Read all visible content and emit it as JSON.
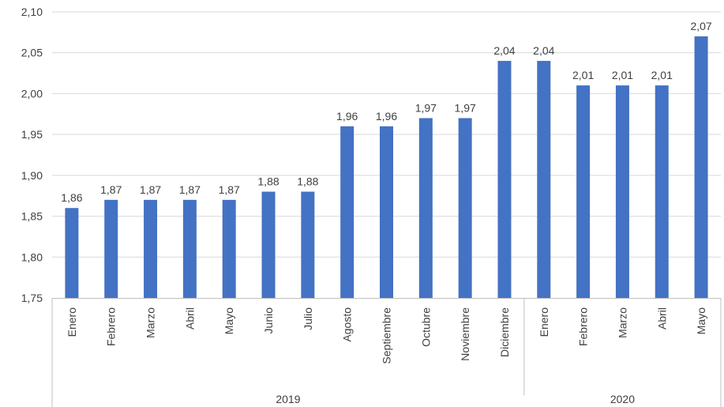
{
  "chart_data": {
    "type": "bar",
    "title": "",
    "xlabel": "",
    "ylabel": "",
    "ylim": [
      1.75,
      2.1
    ],
    "yticks": [
      "1,75",
      "1,80",
      "1,85",
      "1,90",
      "1,95",
      "2,00",
      "2,05",
      "2,10"
    ],
    "grid": true,
    "bar_color": "#4472C4",
    "categories": [
      "Enero",
      "Febrero",
      "Marzo",
      "Abril",
      "Mayo",
      "Junio",
      "Julio",
      "Agosto",
      "Septiembre",
      "Octubre",
      "Noviembre",
      "Diciembre",
      "Enero",
      "Febrero",
      "Marzo",
      "Abril",
      "Mayo"
    ],
    "values": [
      1.86,
      1.87,
      1.87,
      1.87,
      1.87,
      1.88,
      1.88,
      1.96,
      1.96,
      1.97,
      1.97,
      2.04,
      2.04,
      2.01,
      2.01,
      2.01,
      2.07
    ],
    "data_labels": [
      "1,86",
      "1,87",
      "1,87",
      "1,87",
      "1,87",
      "1,88",
      "1,88",
      "1,96",
      "1,96",
      "1,97",
      "1,97",
      "2,04",
      "2,04",
      "2,01",
      "2,01",
      "2,01",
      "2,07"
    ],
    "groups": [
      {
        "label": "2019",
        "count": 12
      },
      {
        "label": "2020",
        "count": 5
      }
    ]
  }
}
